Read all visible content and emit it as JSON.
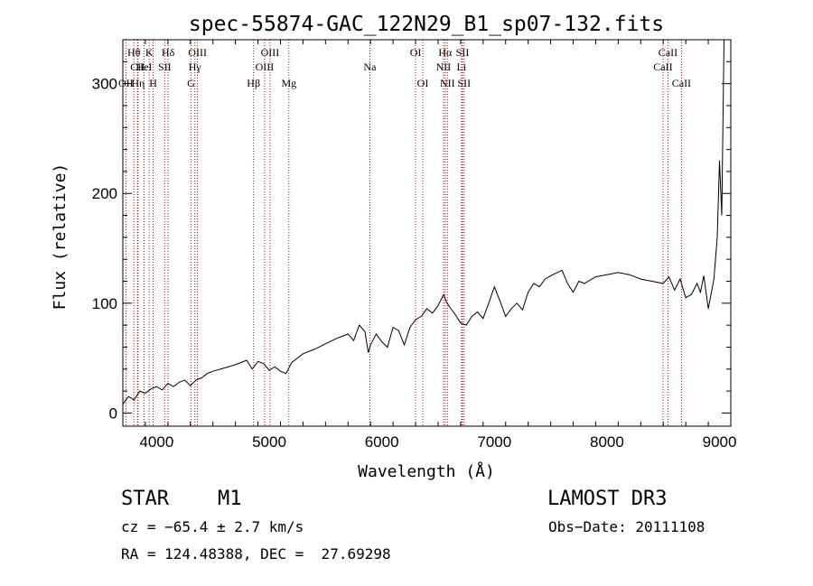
{
  "chart_data": {
    "type": "line",
    "title": "spec-55874-GAC_122N29_B1_sp07-132.fits",
    "xlabel": "Wavelength (Å)",
    "ylabel": "Flux (relative)",
    "xlim": [
      3700,
      9100
    ],
    "ylim": [
      -12,
      340
    ],
    "xticks": [
      4000,
      5000,
      6000,
      7000,
      8000,
      9000
    ],
    "xtick_labels": [
      "4000",
      "5000",
      "6000",
      "7000",
      "8000",
      "9000"
    ],
    "yticks": [
      0,
      100,
      200,
      300
    ],
    "ytick_labels": [
      "0",
      "100",
      "200",
      "300"
    ],
    "grid": false,
    "series": [
      {
        "name": "spectrum",
        "x": [
          3700,
          3750,
          3800,
          3850,
          3900,
          3950,
          4000,
          4050,
          4100,
          4150,
          4200,
          4250,
          4300,
          4350,
          4400,
          4450,
          4500,
          4600,
          4700,
          4800,
          4850,
          4900,
          4950,
          5000,
          5050,
          5100,
          5150,
          5200,
          5300,
          5400,
          5500,
          5600,
          5700,
          5750,
          5800,
          5850,
          5880,
          5900,
          5950,
          6000,
          6050,
          6100,
          6150,
          6200,
          6250,
          6300,
          6350,
          6400,
          6450,
          6500,
          6550,
          6570,
          6600,
          6650,
          6700,
          6750,
          6800,
          6850,
          6900,
          6950,
          7000,
          7050,
          7100,
          7150,
          7200,
          7250,
          7300,
          7350,
          7400,
          7450,
          7500,
          7600,
          7650,
          7700,
          7750,
          7800,
          7900,
          8000,
          8100,
          8200,
          8300,
          8400,
          8500,
          8550,
          8600,
          8650,
          8700,
          8750,
          8800,
          8830,
          8860,
          8900,
          8950,
          8980,
          9000,
          9020,
          9040
        ],
        "y": [
          8,
          15,
          12,
          20,
          18,
          22,
          24,
          21,
          27,
          24,
          28,
          30,
          25,
          30,
          32,
          36,
          38,
          41,
          44,
          48,
          40,
          47,
          45,
          39,
          42,
          38,
          36,
          46,
          54,
          58,
          63,
          68,
          72,
          66,
          80,
          74,
          55,
          62,
          72,
          65,
          60,
          78,
          75,
          62,
          78,
          85,
          88,
          95,
          91,
          98,
          108,
          102,
          97,
          90,
          82,
          80,
          88,
          92,
          86,
          100,
          115,
          102,
          88,
          95,
          100,
          94,
          110,
          118,
          115,
          122,
          125,
          130,
          118,
          110,
          120,
          118,
          124,
          126,
          128,
          126,
          122,
          120,
          118,
          124,
          112,
          122,
          105,
          108,
          118,
          110,
          125,
          95,
          122,
          160,
          230,
          180,
          340
        ]
      }
    ],
    "lines": [
      {
        "label": "Hθ",
        "x": 3798,
        "row": 1
      },
      {
        "label": "CII",
        "x": 3830,
        "row": 2
      },
      {
        "label": "OII",
        "x": 3727,
        "row": 3
      },
      {
        "label": "Hη",
        "x": 3835,
        "row": 3
      },
      {
        "label": "HeI",
        "x": 3888,
        "row": 2
      },
      {
        "label": "K",
        "x": 3934,
        "row": 1
      },
      {
        "label": "H",
        "x": 3969,
        "row": 3
      },
      {
        "label": "SII",
        "x": 4072,
        "row": 2
      },
      {
        "label": "Hδ",
        "x": 4102,
        "row": 1
      },
      {
        "label": "OIII",
        "x": 4363,
        "row": 1
      },
      {
        "label": "Hγ",
        "x": 4340,
        "row": 2
      },
      {
        "label": "G",
        "x": 4305,
        "row": 3
      },
      {
        "label": "Hβ",
        "x": 4861,
        "row": 3
      },
      {
        "label": "OIII",
        "x": 4959,
        "row": 2
      },
      {
        "label": "OIII",
        "x": 5007,
        "row": 1
      },
      {
        "label": "Mg",
        "x": 5175,
        "row": 3
      },
      {
        "label": "Na",
        "x": 5894,
        "row": 2
      },
      {
        "label": "OI",
        "x": 6300,
        "row": 1
      },
      {
        "label": "OI",
        "x": 6364,
        "row": 3
      },
      {
        "label": "Hα",
        "x": 6563,
        "row": 1
      },
      {
        "label": "NII",
        "x": 6548,
        "row": 2
      },
      {
        "label": "NII",
        "x": 6583,
        "row": 3
      },
      {
        "label": "SII",
        "x": 6717,
        "row": 1
      },
      {
        "label": "Li",
        "x": 6708,
        "row": 2
      },
      {
        "label": "SII",
        "x": 6731,
        "row": 3
      },
      {
        "label": "CaII",
        "x": 8498,
        "row": 2
      },
      {
        "label": "CaII",
        "x": 8542,
        "row": 1
      },
      {
        "label": "CaII",
        "x": 8662,
        "row": 3
      }
    ]
  },
  "info": {
    "class": "STAR",
    "subclass": "M1",
    "survey": "LAMOST DR3",
    "cz": "cz = −65.4 ± 2.7 km/s",
    "obs_date": "Obs−Date: 20111108",
    "radec": "RA = 124.48388, DEC =  27.69298"
  }
}
